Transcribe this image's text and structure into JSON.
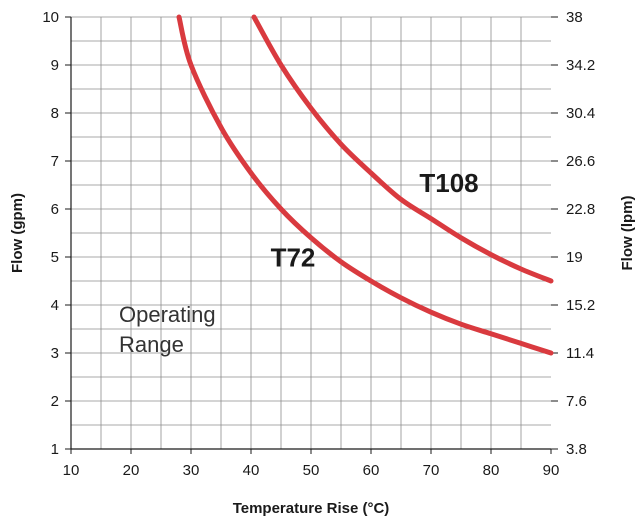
{
  "chart_data": {
    "type": "line",
    "xlabel": "Temperature Rise (°C)",
    "ylabel": "Flow (gpm)",
    "y2label": "Flow (lpm)",
    "xlim": [
      10,
      90
    ],
    "ylim": [
      1,
      10
    ],
    "x_ticks": [
      10,
      20,
      30,
      40,
      50,
      60,
      70,
      80,
      90
    ],
    "y_ticks": [
      1,
      2,
      3,
      4,
      5,
      6,
      7,
      8,
      9,
      10
    ],
    "y2_ticks": [
      "3.8",
      "7.6",
      "11.4",
      "15.2",
      "19",
      "22.8",
      "26.6",
      "30.4",
      "34.2",
      "38"
    ],
    "grid": true,
    "series": [
      {
        "name": "T72",
        "color": "#d93a3f",
        "x": [
          28,
          30,
          35,
          40,
          45,
          50,
          55,
          60,
          65,
          70,
          75,
          80,
          85,
          90
        ],
        "y": [
          10,
          9.0,
          7.7,
          6.75,
          6.0,
          5.4,
          4.9,
          4.5,
          4.15,
          3.85,
          3.6,
          3.4,
          3.2,
          3.0
        ]
      },
      {
        "name": "T108",
        "color": "#d93a3f",
        "x": [
          40.5,
          45,
          50,
          55,
          60,
          65,
          70,
          75,
          80,
          85,
          90
        ],
        "y": [
          10,
          9.0,
          8.1,
          7.35,
          6.75,
          6.2,
          5.8,
          5.4,
          5.05,
          4.75,
          4.5
        ]
      }
    ],
    "annotations": [
      {
        "text": "T108",
        "x": 73,
        "y": 6.35
      },
      {
        "text": "T72",
        "x": 47,
        "y": 4.8
      }
    ],
    "region_label": {
      "lines": [
        "Operating",
        "Range"
      ],
      "x": 18,
      "y": 3.1
    }
  }
}
